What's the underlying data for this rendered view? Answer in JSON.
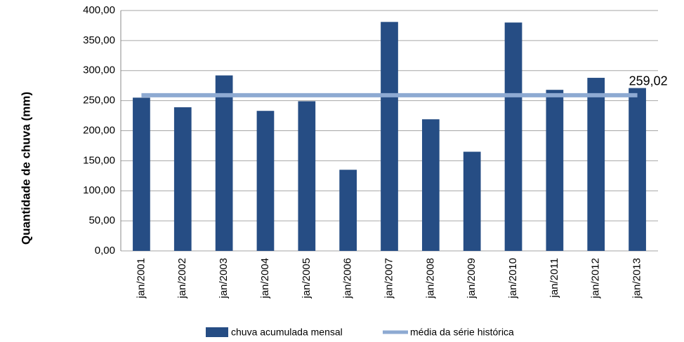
{
  "chart_data": {
    "type": "bar",
    "y_label": "Quantidade de chuva (mm)",
    "categories": [
      "jan/2001",
      "jan/2002",
      "jan/2003",
      "jan/2004",
      "jan/2005",
      "jan/2006",
      "jan/2007",
      "jan/2008",
      "jan/2009",
      "jan/2010",
      "jan/2011",
      "jan/2012",
      "jan/2013"
    ],
    "series": [
      {
        "name": "chuva acumulada mensal",
        "type": "bar",
        "color": "#264d84",
        "values": [
          255,
          239,
          292,
          233,
          249,
          135,
          381,
          219,
          165,
          380,
          268,
          288,
          271
        ]
      },
      {
        "name": "média da série histórica",
        "type": "line",
        "color": "#8eaad2",
        "values": [
          259.02,
          259.02,
          259.02,
          259.02,
          259.02,
          259.02,
          259.02,
          259.02,
          259.02,
          259.02,
          259.02,
          259.02,
          259.02
        ],
        "value_labels": [
          null,
          null,
          null,
          null,
          null,
          null,
          null,
          null,
          null,
          null,
          null,
          null,
          "259,02"
        ]
      }
    ],
    "ylim": [
      0,
      400
    ],
    "yticks": [
      {
        "value": 0,
        "label": "0,00"
      },
      {
        "value": 50,
        "label": "50,00"
      },
      {
        "value": 100,
        "label": "100,00"
      },
      {
        "value": 150,
        "label": "150,00"
      },
      {
        "value": 200,
        "label": "200,00"
      },
      {
        "value": 250,
        "label": "250,00"
      },
      {
        "value": 300,
        "label": "300,00"
      },
      {
        "value": 350,
        "label": "350,00"
      },
      {
        "value": 400,
        "label": "400,00"
      }
    ],
    "grid": true
  }
}
